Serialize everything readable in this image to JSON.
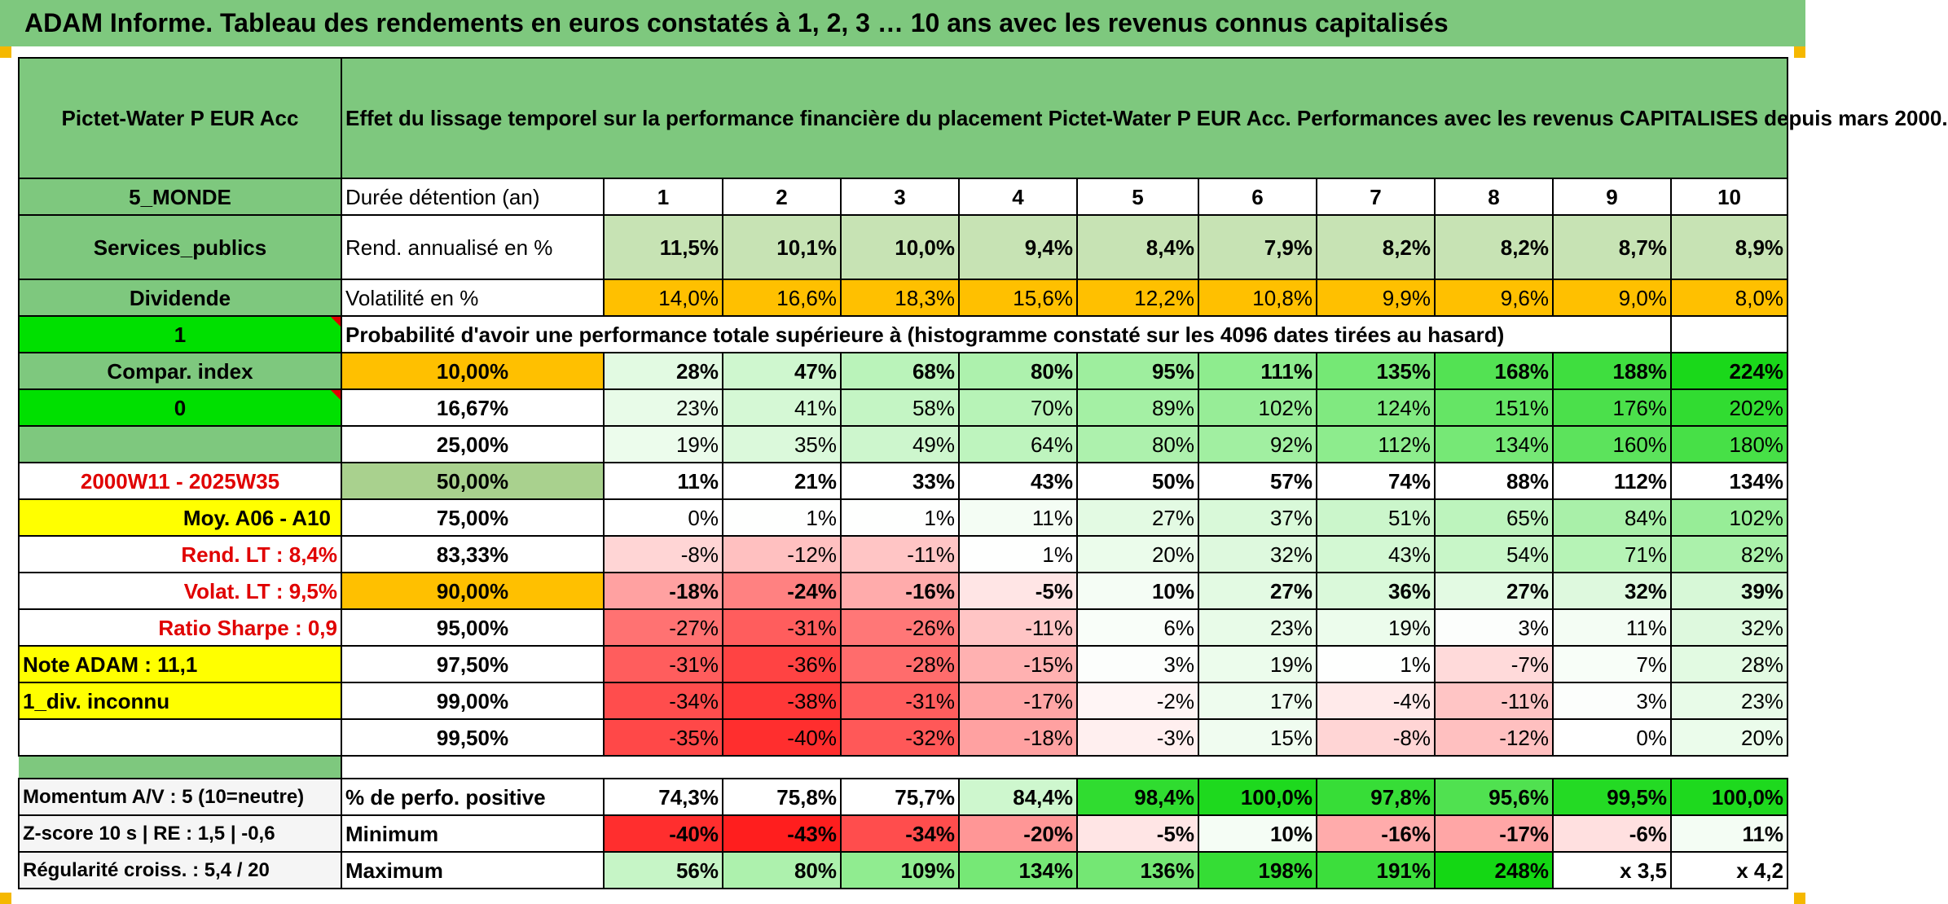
{
  "title": "ADAM Informe. Tableau des rendements en euros constatés à 1, 2, 3 … 10 ans avec les revenus connus capitalisés",
  "fund_name": "Pictet-Water P EUR Acc",
  "description": "Effet du lissage temporel sur la performance financière du placement Pictet-Water P EUR Acc. Performances avec les revenus CAPITALISES depuis mars 2000.",
  "left_labels": {
    "zone": "5_MONDE",
    "sector": "Services_publics",
    "dividend": "Dividende",
    "one": "1",
    "compar": "Compar. index",
    "zero": "0",
    "period": "2000W11 - 2025W35",
    "moy": "Moy. A06 - A10",
    "rend_lt": "Rend. LT :   8,4%",
    "volat_lt": "Volat. LT :   9,5%",
    "sharpe": "Ratio Sharpe :   0,9",
    "note": "Note ADAM : 11,1",
    "div_unknown": "1_div. inconnu",
    "momentum": "Momentum A/V : 5 (10=neutre)",
    "zscore": "Z-score 10 s | RE : 1,5 | -0,6",
    "regularite": "Régularité croiss. : 5,4 / 20"
  },
  "row_labels": {
    "duree": "Durée détention (an)",
    "rend": "Rend. annualisé en %",
    "volat": "Volatilité en %",
    "proba": "Probabilité d'avoir une performance totale supérieure à (histogramme constaté sur les 4096 dates tirées au hasard)",
    "pos": "% de perfo. positive",
    "min": "Minimum",
    "max": "Maximum"
  },
  "years": [
    "1",
    "2",
    "3",
    "4",
    "5",
    "6",
    "7",
    "8",
    "9",
    "10"
  ],
  "rend": [
    "11,5%",
    "10,1%",
    "10,0%",
    "9,4%",
    "8,4%",
    "7,9%",
    "8,2%",
    "8,2%",
    "8,7%",
    "8,9%"
  ],
  "volat": [
    "14,0%",
    "16,6%",
    "18,3%",
    "15,6%",
    "12,2%",
    "10,8%",
    "9,9%",
    "9,6%",
    "9,0%",
    "8,0%"
  ],
  "quantiles": [
    {
      "p": "10,00%",
      "v": [
        "28%",
        "47%",
        "68%",
        "80%",
        "95%",
        "111%",
        "135%",
        "168%",
        "188%",
        "224%"
      ]
    },
    {
      "p": "16,67%",
      "v": [
        "23%",
        "41%",
        "58%",
        "70%",
        "89%",
        "102%",
        "124%",
        "151%",
        "176%",
        "202%"
      ]
    },
    {
      "p": "25,00%",
      "v": [
        "19%",
        "35%",
        "49%",
        "64%",
        "80%",
        "92%",
        "112%",
        "134%",
        "160%",
        "180%"
      ]
    },
    {
      "p": "50,00%",
      "v": [
        "11%",
        "21%",
        "33%",
        "43%",
        "50%",
        "57%",
        "74%",
        "88%",
        "112%",
        "134%"
      ]
    },
    {
      "p": "75,00%",
      "v": [
        "0%",
        "1%",
        "1%",
        "11%",
        "27%",
        "37%",
        "51%",
        "65%",
        "84%",
        "102%"
      ]
    },
    {
      "p": "83,33%",
      "v": [
        "-8%",
        "-12%",
        "-11%",
        "1%",
        "20%",
        "32%",
        "43%",
        "54%",
        "71%",
        "82%"
      ]
    },
    {
      "p": "90,00%",
      "v": [
        "-18%",
        "-24%",
        "-16%",
        "-5%",
        "10%",
        "27%",
        "36%",
        "27%",
        "32%",
        "39%"
      ]
    },
    {
      "p": "95,00%",
      "v": [
        "-27%",
        "-31%",
        "-26%",
        "-11%",
        "6%",
        "23%",
        "19%",
        "3%",
        "11%",
        "32%"
      ]
    },
    {
      "p": "97,50%",
      "v": [
        "-31%",
        "-36%",
        "-28%",
        "-15%",
        "3%",
        "19%",
        "1%",
        "-7%",
        "7%",
        "28%"
      ]
    },
    {
      "p": "99,00%",
      "v": [
        "-34%",
        "-38%",
        "-31%",
        "-17%",
        "-2%",
        "17%",
        "-4%",
        "-11%",
        "3%",
        "23%"
      ]
    },
    {
      "p": "99,50%",
      "v": [
        "-35%",
        "-40%",
        "-32%",
        "-18%",
        "-3%",
        "15%",
        "-8%",
        "-12%",
        "0%",
        "20%"
      ]
    }
  ],
  "positive": [
    "74,3%",
    "75,8%",
    "75,7%",
    "84,4%",
    "98,4%",
    "100,0%",
    "97,8%",
    "95,6%",
    "99,5%",
    "100,0%"
  ],
  "minimum": [
    "-40%",
    "-43%",
    "-34%",
    "-20%",
    "-5%",
    "10%",
    "-16%",
    "-17%",
    "-6%",
    "11%"
  ],
  "maximum": [
    "56%",
    "80%",
    "109%",
    "134%",
    "136%",
    "198%",
    "191%",
    "248%",
    "x 3,5",
    "x 4,2"
  ],
  "colors": {
    "header_green": "#7ec87e",
    "light_green": "#c7e3b4",
    "orange": "#ffc000",
    "lime": "#00e000",
    "yellow": "#ffff00",
    "red_text": "#e00000"
  }
}
